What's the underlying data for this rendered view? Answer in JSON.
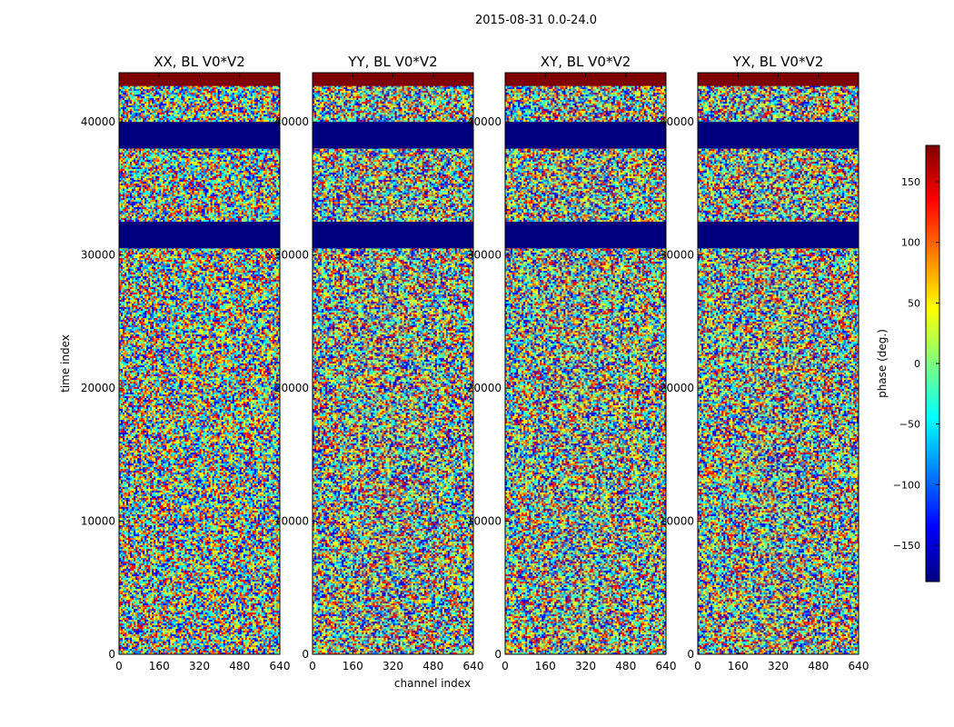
{
  "chart_data": {
    "type": "heatmap",
    "suptitle": "2015-08-31 0.0-24.0",
    "xlabel": "channel index",
    "ylabel": "time index",
    "xlim": [
      0,
      640
    ],
    "ylim": [
      0,
      43700
    ],
    "xticks": [
      0,
      160,
      320,
      480,
      640
    ],
    "yticks": [
      0,
      10000,
      20000,
      30000,
      40000
    ],
    "panels": [
      {
        "title": "XX, BL V0*V2",
        "masked_bands": [
          [
            38000,
            40000
          ],
          [
            30500,
            32500
          ]
        ],
        "flagged_top": [
          42700,
          43700
        ]
      },
      {
        "title": "YY, BL V0*V2",
        "masked_bands": [
          [
            38000,
            40000
          ],
          [
            30500,
            32500
          ]
        ],
        "flagged_top": [
          42700,
          43700
        ]
      },
      {
        "title": "XY, BL V0*V2",
        "masked_bands": [
          [
            38000,
            40000
          ],
          [
            30500,
            32500
          ]
        ],
        "flagged_top": [
          42700,
          43700
        ]
      },
      {
        "title": "YX, BL V0*V2",
        "masked_bands": [
          [
            38000,
            40000
          ],
          [
            30500,
            32500
          ]
        ],
        "flagged_top": [
          42700,
          43700
        ]
      }
    ],
    "colorbar": {
      "label": "phase (deg.)",
      "vmin": -180,
      "vmax": 180,
      "ticks": [
        150,
        100,
        50,
        0,
        -50,
        -100,
        -150
      ],
      "tick_labels": [
        "150",
        "100",
        "50",
        "0",
        "−50",
        "−100",
        "−150"
      ],
      "colormap": "jet",
      "colormap_stops": [
        "#00007f",
        "#0000ff",
        "#007fff",
        "#00ffff",
        "#7fff7f",
        "#ffff00",
        "#ff7f00",
        "#ff0000",
        "#7f0000"
      ]
    }
  }
}
